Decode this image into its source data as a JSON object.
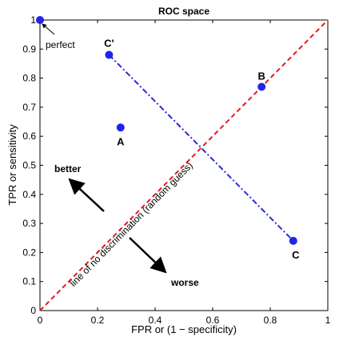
{
  "chart_data": {
    "type": "scatter",
    "title": "ROC space",
    "xlabel": "FPR or (1 − specificity)",
    "ylabel": "TPR or sensitivity",
    "xlim": [
      0,
      1
    ],
    "ylim": [
      0,
      1
    ],
    "x_ticks": [
      0,
      0.2,
      0.4,
      0.6,
      0.8,
      1
    ],
    "x_tick_labels": [
      "0",
      "0.2",
      "0.4",
      "0.6",
      "0.8",
      "1"
    ],
    "y_ticks": [
      0,
      0.1,
      0.2,
      0.3,
      0.4,
      0.5,
      0.6,
      0.7,
      0.8,
      0.9,
      1
    ],
    "y_tick_labels": [
      "0",
      "0.1",
      "0.2",
      "0.3",
      "0.4",
      "0.5",
      "0.6",
      "0.7",
      "0.8",
      "0.9",
      "1"
    ],
    "grid": false,
    "points": [
      {
        "label": "",
        "x": 0.0,
        "y": 1.0
      },
      {
        "label": "A",
        "x": 0.28,
        "y": 0.63
      },
      {
        "label": "B",
        "x": 0.77,
        "y": 0.77
      },
      {
        "label": "C",
        "x": 0.88,
        "y": 0.24
      },
      {
        "label": "C'",
        "x": 0.24,
        "y": 0.88
      }
    ],
    "lines": [
      {
        "style": "dashed",
        "color": "#e31a1c",
        "x": [
          0,
          1
        ],
        "y": [
          0,
          1
        ]
      },
      {
        "style": "dash-dot",
        "color": "#2b2bd6",
        "x": [
          0.24,
          0.88
        ],
        "y": [
          0.88,
          0.24
        ]
      }
    ],
    "annotations": {
      "perfect": "perfect",
      "better": "better",
      "worse": "worse",
      "diagonal": "line of no discrimination (random guess)"
    },
    "colors": {
      "point": "#2222ee",
      "diagonal": "#e31a1c",
      "mirror": "#2b2bd6"
    }
  }
}
